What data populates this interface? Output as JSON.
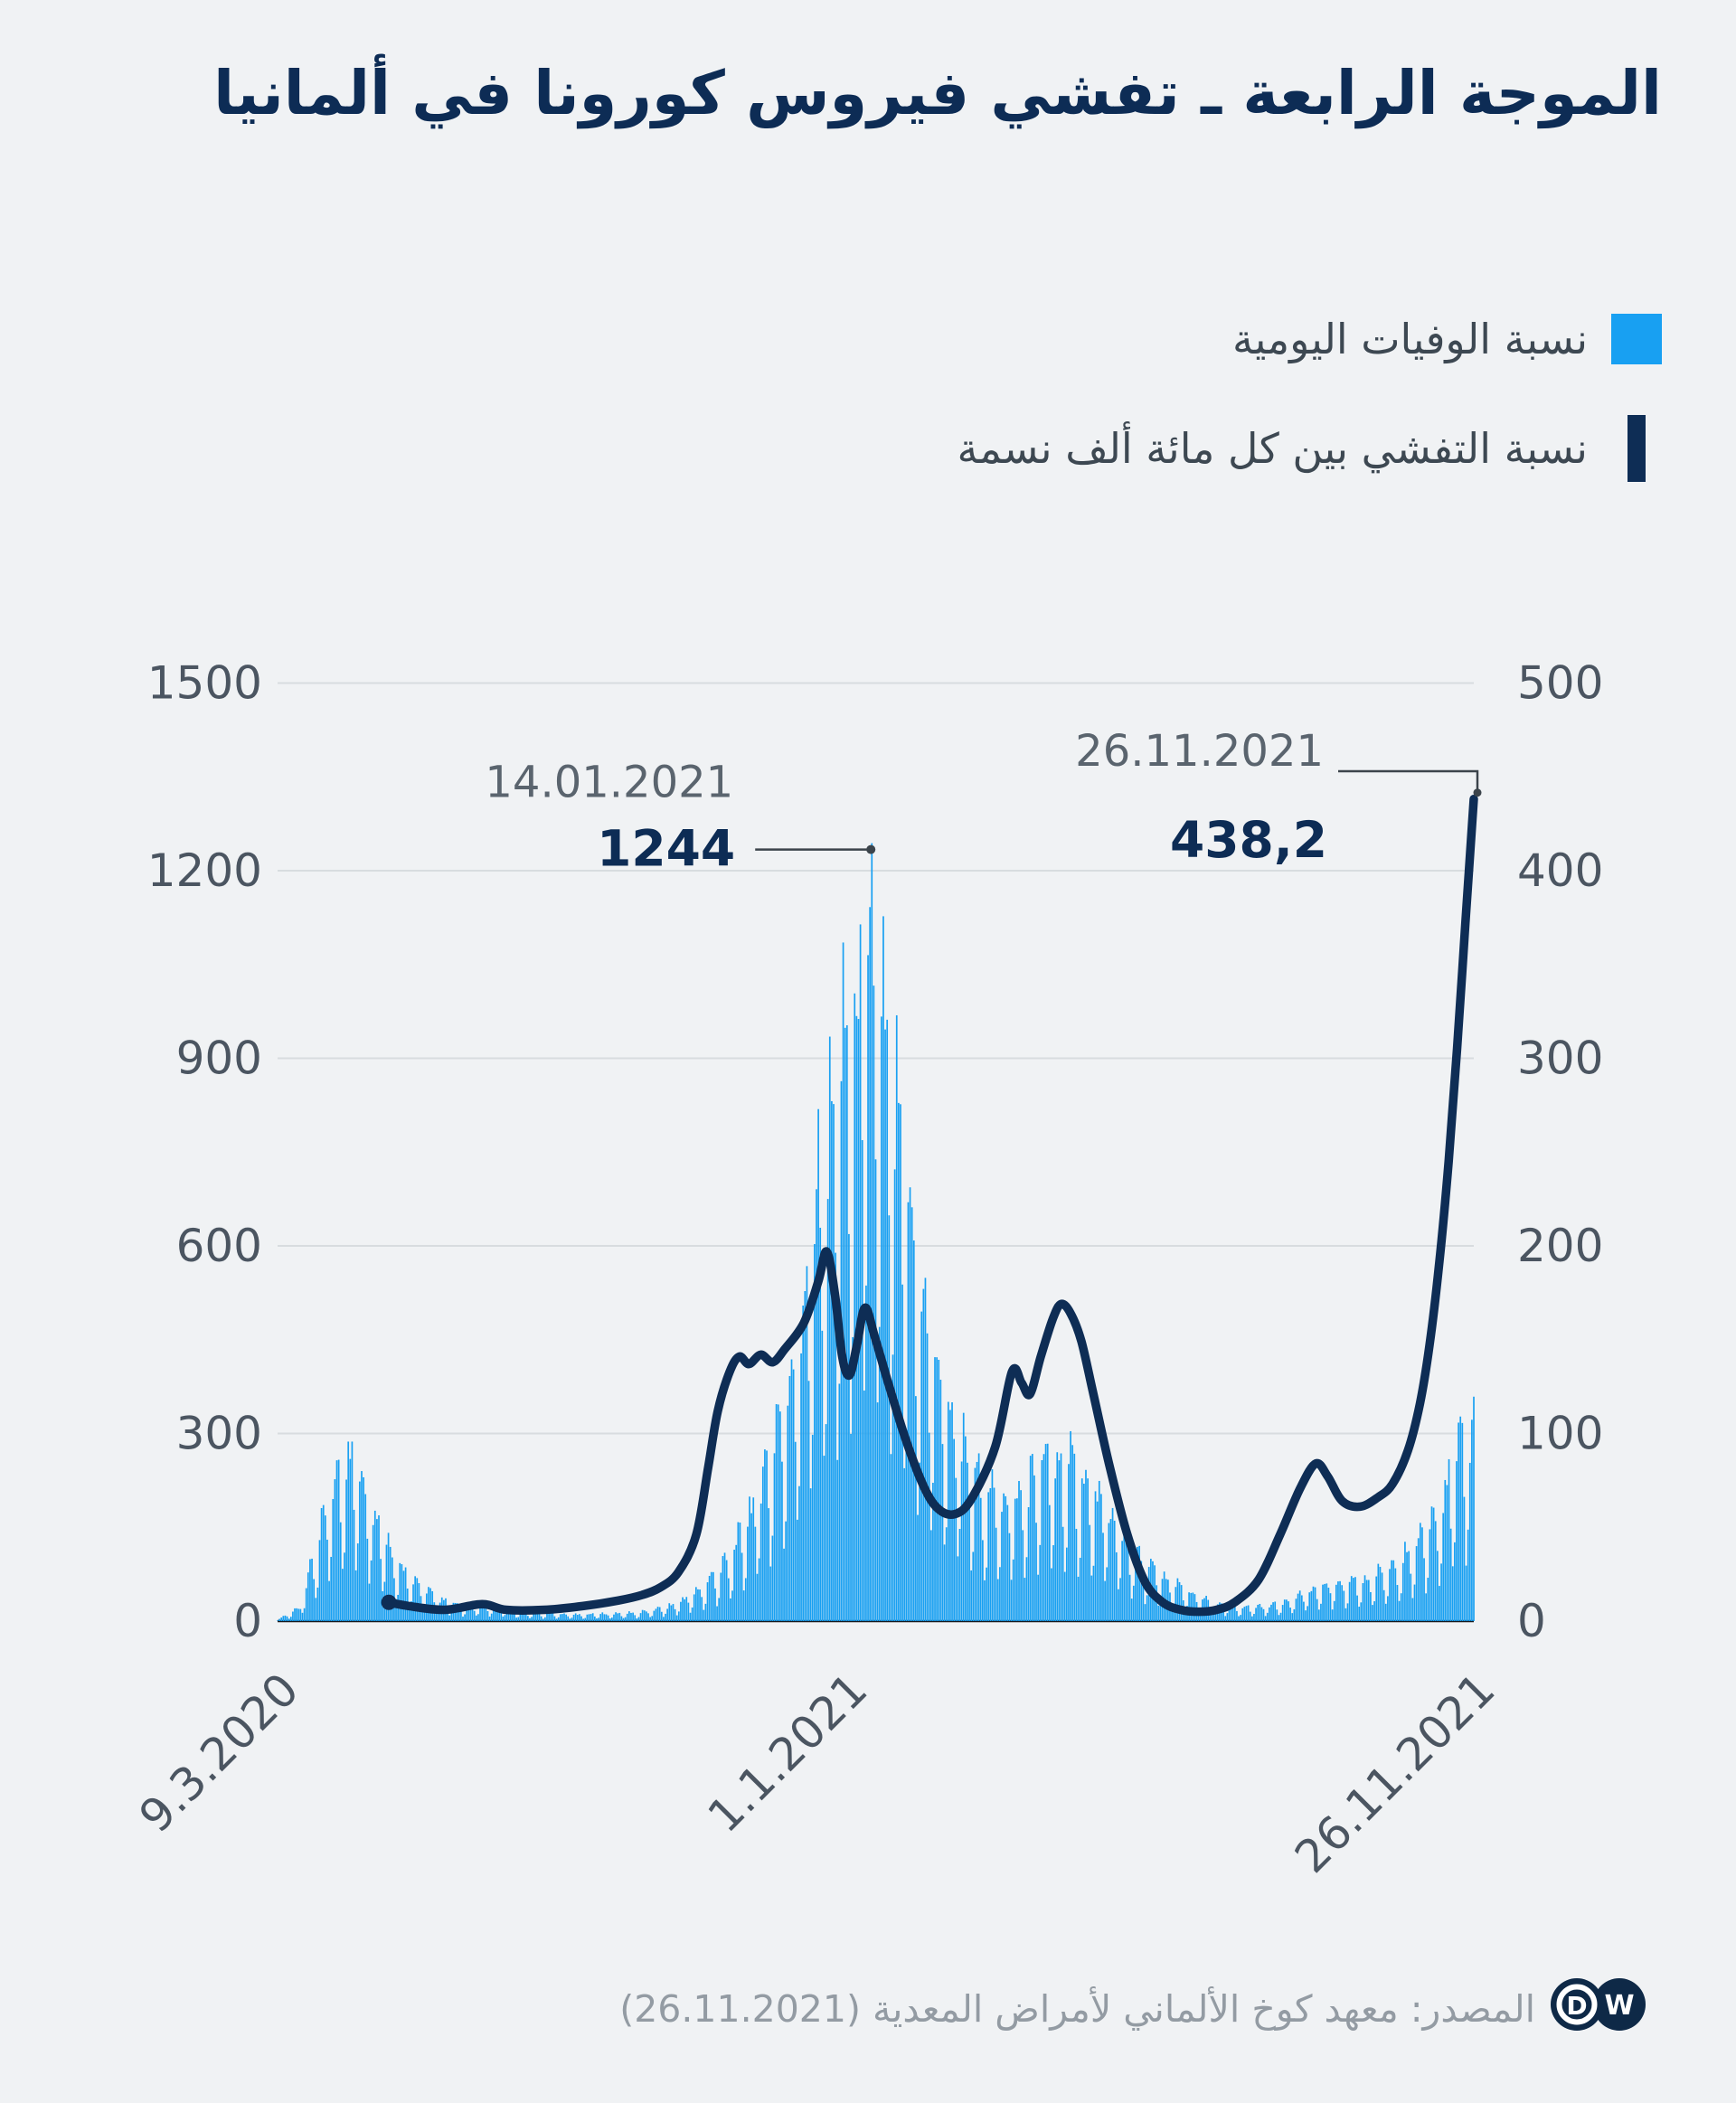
{
  "title": "الموجة الرابعة ـ تفشي فيروس كورونا في ألمانيا",
  "legend": [
    {
      "label": "نسبة الوفيات اليومية",
      "swatch": "square",
      "color": "#18a0f2"
    },
    {
      "label": "نسبة التفشي بين كل مائة ألف نسمة",
      "swatch": "bar",
      "color": "#0e2d55"
    }
  ],
  "source": "المصدر: معهد كوخ الألماني لأمراض المعدية (26.11.2021)",
  "logo": {
    "letters": [
      "D",
      "W"
    ],
    "color": "#0e2947",
    "text_color": "#ffffff"
  },
  "colors": {
    "background": "#f0f2f4",
    "bar": "#18a0f2",
    "line": "#0e2d55",
    "title": "#0d2c55",
    "axis_text": "#4b5561",
    "annotation_date": "#5a646e",
    "annotation_value": "#0d2c55",
    "gridline": "#d8dcdf",
    "baseline": "#16191d",
    "callout": "#3c444b",
    "source_text": "#939ba3"
  },
  "chart_data": {
    "type": "combo",
    "title": "الموجة الرابعة ـ تفشي فيروس كورونا في ألمانيا",
    "x_domain": {
      "start": "9.3.2020",
      "end": "26.11.2021",
      "days": 627
    },
    "axes": {
      "left": {
        "ticks": [
          "1500",
          "1200",
          "900",
          "600",
          "300",
          "0"
        ],
        "max": 1500
      },
      "right": {
        "ticks": [
          "500",
          "400",
          "300",
          "200",
          "100",
          "0"
        ],
        "max": 500
      },
      "x": {
        "ticks": [
          {
            "label": "9.3.2020",
            "pos": 0.0
          },
          {
            "label": "1.1.2021",
            "pos": 0.4753
          },
          {
            "label": "26.11.2021",
            "pos": 1.0
          }
        ]
      }
    },
    "series": [
      {
        "name": "daily-deaths",
        "label": "نسبة الوفيات اليومية",
        "type": "bar",
        "axis": "left",
        "color": "#18a0f2",
        "envelope": [
          [
            0.0,
            2
          ],
          [
            0.018,
            25
          ],
          [
            0.037,
            170
          ],
          [
            0.048,
            255
          ],
          [
            0.059,
            315
          ],
          [
            0.07,
            270
          ],
          [
            0.085,
            185
          ],
          [
            0.096,
            130
          ],
          [
            0.107,
            92
          ],
          [
            0.134,
            42
          ],
          [
            0.156,
            26
          ],
          [
            0.175,
            30
          ],
          [
            0.204,
            16
          ],
          [
            0.254,
            12
          ],
          [
            0.303,
            16
          ],
          [
            0.329,
            28
          ],
          [
            0.351,
            55
          ],
          [
            0.378,
            115
          ],
          [
            0.4,
            230
          ],
          [
            0.426,
            430
          ],
          [
            0.44,
            570
          ],
          [
            0.453,
            800
          ],
          [
            0.464,
            910
          ],
          [
            0.472,
            1010
          ],
          [
            0.483,
            1110
          ],
          [
            0.496,
            1244
          ],
          [
            0.507,
            1060
          ],
          [
            0.525,
            790
          ],
          [
            0.539,
            570
          ],
          [
            0.555,
            445
          ],
          [
            0.569,
            335
          ],
          [
            0.592,
            235
          ],
          [
            0.619,
            225
          ],
          [
            0.641,
            295
          ],
          [
            0.667,
            280
          ],
          [
            0.689,
            215
          ],
          [
            0.716,
            125
          ],
          [
            0.739,
            82
          ],
          [
            0.764,
            50
          ],
          [
            0.786,
            30
          ],
          [
            0.813,
            26
          ],
          [
            0.836,
            32
          ],
          [
            0.863,
            56
          ],
          [
            0.885,
            72
          ],
          [
            0.911,
            78
          ],
          [
            0.933,
            95
          ],
          [
            0.96,
            165
          ],
          [
            0.974,
            235
          ],
          [
            0.987,
            305
          ],
          [
            1.0,
            360
          ]
        ],
        "weekly_pattern": [
          0.42,
          0.85,
          1.0,
          0.97,
          0.92,
          0.62,
          0.3
        ],
        "jitter_base": 0.84,
        "jitter_amp": 0.24,
        "max_value": 1244,
        "peak_day": 311
      },
      {
        "name": "incidence-per-100k",
        "label": "نسبة التفشي بين كل مائة ألف نسمة",
        "type": "line",
        "axis": "right",
        "color": "#0e2d55",
        "points": [
          [
            0.093,
            10
          ],
          [
            0.11,
            8
          ],
          [
            0.14,
            6
          ],
          [
            0.171,
            9
          ],
          [
            0.191,
            6
          ],
          [
            0.223,
            6
          ],
          [
            0.255,
            8
          ],
          [
            0.285,
            11
          ],
          [
            0.305,
            14
          ],
          [
            0.32,
            18
          ],
          [
            0.335,
            26
          ],
          [
            0.35,
            46
          ],
          [
            0.36,
            82
          ],
          [
            0.368,
            112
          ],
          [
            0.378,
            133
          ],
          [
            0.386,
            141
          ],
          [
            0.394,
            137
          ],
          [
            0.404,
            142
          ],
          [
            0.414,
            138
          ],
          [
            0.424,
            145
          ],
          [
            0.44,
            159
          ],
          [
            0.452,
            181
          ],
          [
            0.459,
            197
          ],
          [
            0.466,
            174
          ],
          [
            0.472,
            141
          ],
          [
            0.478,
            131
          ],
          [
            0.484,
            146
          ],
          [
            0.491,
            167
          ],
          [
            0.499,
            152
          ],
          [
            0.51,
            128
          ],
          [
            0.525,
            97
          ],
          [
            0.54,
            72
          ],
          [
            0.552,
            60
          ],
          [
            0.566,
            57
          ],
          [
            0.58,
            65
          ],
          [
            0.6,
            93
          ],
          [
            0.614,
            133
          ],
          [
            0.622,
            127
          ],
          [
            0.629,
            121
          ],
          [
            0.638,
            141
          ],
          [
            0.648,
            161
          ],
          [
            0.655,
            169
          ],
          [
            0.663,
            164
          ],
          [
            0.672,
            149
          ],
          [
            0.682,
            121
          ],
          [
            0.695,
            84
          ],
          [
            0.71,
            47
          ],
          [
            0.725,
            21
          ],
          [
            0.74,
            10
          ],
          [
            0.755,
            6
          ],
          [
            0.77,
            5
          ],
          [
            0.785,
            6
          ],
          [
            0.8,
            10
          ],
          [
            0.82,
            22
          ],
          [
            0.838,
            46
          ],
          [
            0.855,
            71
          ],
          [
            0.868,
            84
          ],
          [
            0.878,
            77
          ],
          [
            0.89,
            64
          ],
          [
            0.905,
            61
          ],
          [
            0.92,
            66
          ],
          [
            0.932,
            73
          ],
          [
            0.945,
            91
          ],
          [
            0.955,
            116
          ],
          [
            0.963,
            147
          ],
          [
            0.971,
            190
          ],
          [
            0.979,
            245
          ],
          [
            0.986,
            305
          ],
          [
            0.993,
            372
          ],
          [
            1.0,
            438.2
          ]
        ]
      }
    ],
    "annotations": [
      {
        "date": "14.01.2021",
        "value_label": "1244",
        "value": 1244,
        "axis": "left",
        "pos": 0.496,
        "style": "peak"
      },
      {
        "date": "26.11.2021",
        "value_label": "438,2",
        "value": 438.2,
        "axis": "right",
        "pos": 1.0,
        "style": "end"
      }
    ],
    "legend_position": "top-right",
    "grid": true
  }
}
